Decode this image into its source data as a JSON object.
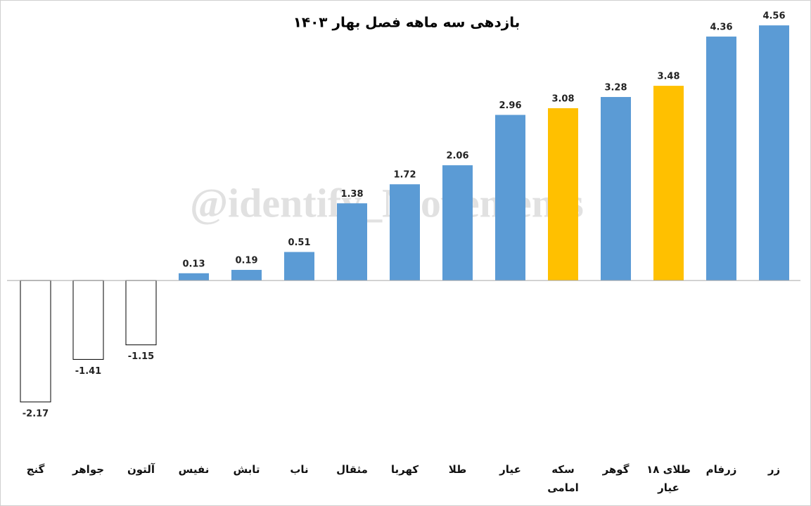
{
  "chart_data": {
    "type": "bar",
    "title": "بازدهی سه ماهه فصل بهار ۱۴۰۳",
    "watermark": "@identify_Movements",
    "categories": [
      "گنج",
      "جواهر",
      "آلتون",
      "نفیس",
      "تابش",
      "ناب",
      "مثقال",
      "کهربا",
      "طلا",
      "عیار",
      "سکه امامی",
      "گوهر",
      "طلای ۱۸ عیار",
      "زرفام",
      "زر"
    ],
    "values": [
      -2.17,
      -1.41,
      -1.15,
      0.13,
      0.19,
      0.51,
      1.38,
      1.72,
      2.06,
      2.96,
      3.08,
      3.28,
      3.48,
      4.36,
      4.56
    ],
    "colors": [
      "#ffffff",
      "#ffffff",
      "#ffffff",
      "#5b9bd5",
      "#5b9bd5",
      "#5b9bd5",
      "#5b9bd5",
      "#5b9bd5",
      "#5b9bd5",
      "#5b9bd5",
      "#ffc000",
      "#5b9bd5",
      "#ffc000",
      "#5b9bd5",
      "#5b9bd5"
    ],
    "edgecolors": [
      "#000000",
      "#000000",
      "#000000",
      "none",
      "none",
      "none",
      "none",
      "none",
      "none",
      "none",
      "none",
      "none",
      "none",
      "none",
      "none"
    ],
    "ylim": [
      -3,
      4.8
    ],
    "zero_line_color": "#a6a6a6"
  }
}
